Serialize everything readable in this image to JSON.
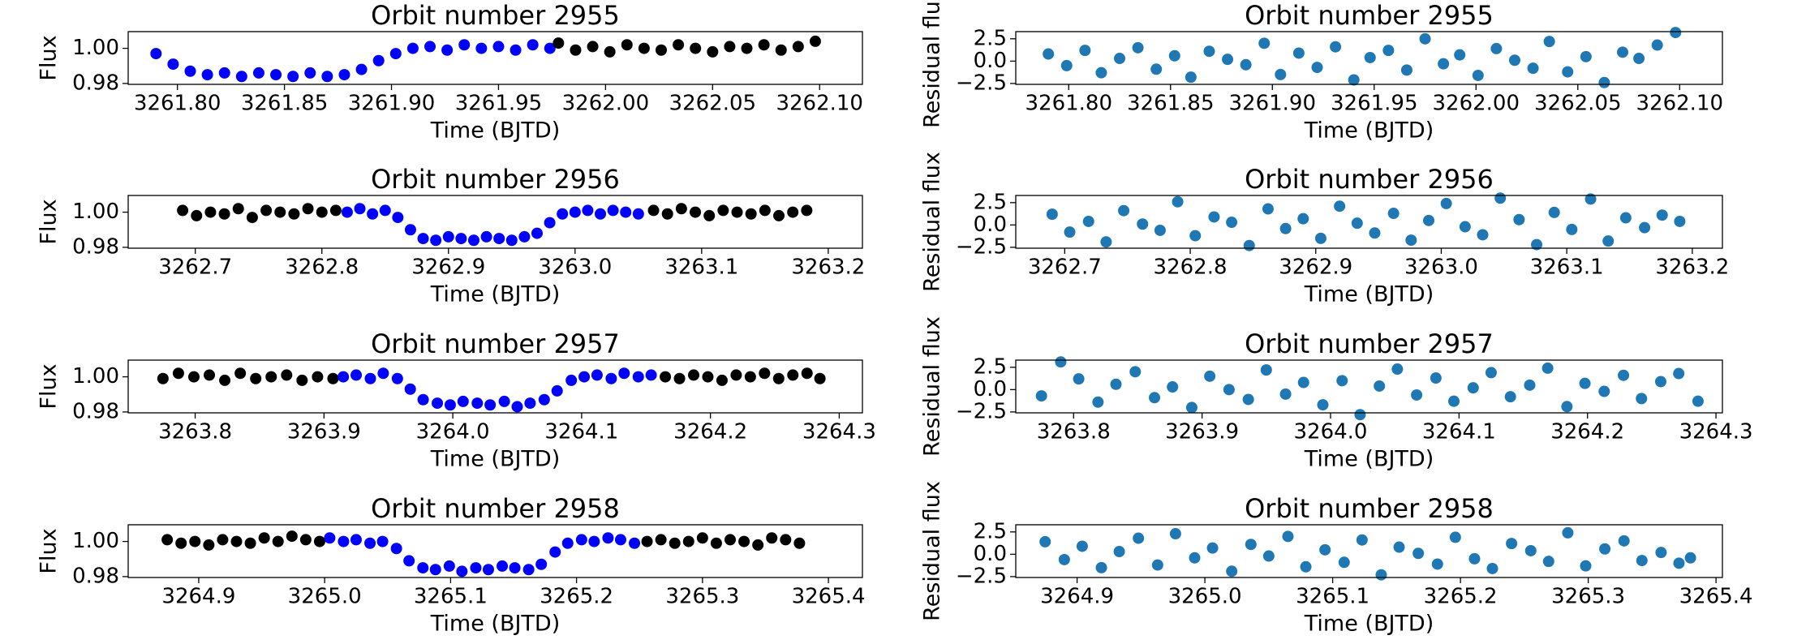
{
  "chart_data": [
    {
      "type": "scatter",
      "title": "Orbit number 2955",
      "xlabel": "Time (BJTD)",
      "ylabel": "Flux",
      "xlim": [
        3261.777,
        3262.12
      ],
      "ylim": [
        0.9795,
        1.0095
      ],
      "xticks": [
        {
          "value": 3261.8,
          "label": "3261.80"
        },
        3261.85,
        {
          "value": 3261.9,
          "label": "3261.90"
        },
        3261.95,
        {
          "value": 3262.0,
          "label": "3262.00"
        },
        3262.05,
        {
          "value": 3262.1,
          "label": "3262.10"
        }
      ],
      "yticks": [
        0.98,
        {
          "value": 1,
          "label": "1.00"
        }
      ],
      "series": [
        {
          "color": "#0000ff",
          "x": [
            3261.79,
            3261.798,
            3261.806,
            3261.814,
            3261.822,
            3261.83,
            3261.838,
            3261.846,
            3261.854,
            3261.862,
            3261.87,
            3261.878,
            3261.886,
            3261.894,
            3261.902,
            3261.91,
            3261.918,
            3261.926,
            3261.934,
            3261.942,
            3261.95,
            3261.958,
            3261.966,
            3261.974
          ],
          "values": [
            0.997,
            0.991,
            0.987,
            0.985,
            0.986,
            0.984,
            0.986,
            0.985,
            0.984,
            0.986,
            0.984,
            0.985,
            0.988,
            0.993,
            0.997,
            1.0,
            1.001,
            0.999,
            1.002,
            1.0,
            1.001,
            0.999,
            1.002,
            1.0
          ]
        },
        {
          "color": "#000000",
          "x": [
            3261.978,
            3261.986,
            3261.994,
            3262.002,
            3262.01,
            3262.018,
            3262.026,
            3262.034,
            3262.042,
            3262.05,
            3262.058,
            3262.066,
            3262.074,
            3262.082,
            3262.09,
            3262.098
          ],
          "values": [
            1.003,
            0.999,
            1.001,
            0.998,
            1.002,
            1.0,
            0.999,
            1.002,
            1.0,
            0.998,
            1.001,
            1.0,
            1.002,
            0.999,
            1.001,
            1.004
          ]
        }
      ]
    },
    {
      "type": "scatter",
      "title": "Orbit number 2955",
      "xlabel": "Time (BJTD)",
      "ylabel": "Residual flux",
      "xlim": [
        3261.774,
        3262.121
      ],
      "ylim": [
        -2.6,
        3.3
      ],
      "xticks": [
        {
          "value": 3261.8,
          "label": "3261.80"
        },
        3261.85,
        {
          "value": 3261.9,
          "label": "3261.90"
        },
        3261.95,
        {
          "value": 3262.0,
          "label": "3262.00"
        },
        3262.05,
        {
          "value": 3262.1,
          "label": "3262.10"
        }
      ],
      "yticks": [
        {
          "value": -2.5,
          "label": "−2.5"
        },
        {
          "value": 0,
          "label": "0.0"
        },
        2.5
      ],
      "series": [
        {
          "color": "#1f77b4",
          "x": [
            3261.79,
            3261.799,
            3261.808,
            3261.816,
            3261.825,
            3261.834,
            3261.843,
            3261.852,
            3261.86,
            3261.869,
            3261.878,
            3261.887,
            3261.896,
            3261.904,
            3261.913,
            3261.922,
            3261.931,
            3261.94,
            3261.948,
            3261.957,
            3261.966,
            3261.975,
            3261.984,
            3261.992,
            3262.001,
            3262.01,
            3262.019,
            3262.028,
            3262.036,
            3262.045,
            3262.054,
            3262.063,
            3262.072,
            3262.08,
            3262.089,
            3262.098
          ],
          "values": [
            0.8,
            -0.5,
            1.2,
            -1.3,
            0.3,
            1.5,
            -0.9,
            0.6,
            -1.8,
            1.1,
            0.2,
            -0.4,
            2.0,
            -1.5,
            0.9,
            -0.7,
            1.6,
            -2.1,
            0.4,
            1.2,
            -1.0,
            2.5,
            -0.3,
            0.7,
            -1.6,
            1.4,
            0.1,
            -0.8,
            2.2,
            -1.2,
            0.5,
            -2.4,
            1.0,
            0.3,
            1.8,
            3.2
          ]
        }
      ]
    },
    {
      "type": "scatter",
      "title": "Orbit number 2956",
      "xlabel": "Time (BJTD)",
      "ylabel": "Flux",
      "xlim": [
        3262.647,
        3263.227
      ],
      "ylim": [
        0.9795,
        1.0095
      ],
      "xticks": [
        3262.7,
        3262.8,
        3262.9,
        {
          "value": 3263.0,
          "label": "3263.0"
        },
        3263.1,
        3263.2
      ],
      "yticks": [
        0.98,
        {
          "value": 1,
          "label": "1.00"
        }
      ],
      "series": [
        {
          "color": "#000000",
          "x": [
            3262.69,
            3262.701,
            3262.712,
            3262.723,
            3262.734,
            3262.745,
            3262.756,
            3262.767,
            3262.778,
            3262.789,
            3262.8,
            3262.811
          ],
          "values": [
            1.001,
            0.998,
            1.0,
            0.999,
            1.002,
            0.997,
            1.001,
            1.0,
            0.999,
            1.002,
            1.0,
            1.001
          ]
        },
        {
          "color": "#0000ff",
          "x": [
            3262.82,
            3262.83,
            3262.84,
            3262.85,
            3262.86,
            3262.87,
            3262.88,
            3262.89,
            3262.9,
            3262.91,
            3262.92,
            3262.93,
            3262.94,
            3262.95,
            3262.96,
            3262.97,
            3262.98,
            3262.99,
            3263.0,
            3263.01,
            3263.02,
            3263.03,
            3263.04,
            3263.05
          ],
          "values": [
            1.0,
            1.002,
            0.999,
            1.001,
            0.997,
            0.99,
            0.985,
            0.984,
            0.986,
            0.985,
            0.984,
            0.986,
            0.985,
            0.984,
            0.986,
            0.988,
            0.994,
            0.999,
            1.0,
            1.001,
            0.999,
            1.001,
            1.0,
            0.999
          ]
        },
        {
          "color": "#000000",
          "x": [
            3263.062,
            3263.073,
            3263.084,
            3263.095,
            3263.106,
            3263.117,
            3263.128,
            3263.139,
            3263.15,
            3263.161,
            3263.172,
            3263.183
          ],
          "values": [
            1.001,
            0.999,
            1.002,
            1.0,
            0.998,
            1.001,
            1.0,
            0.999,
            1.001,
            0.998,
            1.0,
            1.001
          ]
        }
      ]
    },
    {
      "type": "scatter",
      "title": "Orbit number 2956",
      "xlabel": "Time (BJTD)",
      "ylabel": "Residual flux",
      "xlim": [
        3262.661,
        3263.224
      ],
      "ylim": [
        -2.6,
        3.3
      ],
      "xticks": [
        3262.7,
        3262.8,
        3262.9,
        {
          "value": 3263.0,
          "label": "3263.0"
        },
        3263.1,
        3263.2
      ],
      "yticks": [
        {
          "value": -2.5,
          "label": "−2.5"
        },
        {
          "value": 0,
          "label": "0.0"
        },
        2.5
      ],
      "series": [
        {
          "color": "#1f77b4",
          "x": [
            3262.69,
            3262.704,
            3262.719,
            3262.733,
            3262.747,
            3262.762,
            3262.776,
            3262.79,
            3262.804,
            3262.819,
            3262.833,
            3262.847,
            3262.862,
            3262.876,
            3262.89,
            3262.904,
            3262.919,
            3262.933,
            3262.947,
            3262.962,
            3262.976,
            3262.99,
            3263.004,
            3263.019,
            3263.033,
            3263.047,
            3263.062,
            3263.076,
            3263.09,
            3263.104,
            3263.119,
            3263.133,
            3263.147,
            3263.162,
            3263.176,
            3263.19
          ],
          "values": [
            1.2,
            -0.8,
            0.4,
            -1.9,
            1.6,
            0.1,
            -0.6,
            2.6,
            -1.2,
            0.9,
            0.3,
            -2.3,
            1.8,
            -0.4,
            0.7,
            -1.5,
            2.1,
            0.2,
            -0.9,
            1.3,
            -1.7,
            0.5,
            2.4,
            -0.2,
            -1.1,
            3.0,
            0.6,
            -2.2,
            1.4,
            -0.5,
            2.9,
            -1.8,
            0.8,
            -0.3,
            1.1,
            0.4
          ]
        }
      ]
    },
    {
      "type": "scatter",
      "title": "Orbit number 2957",
      "xlabel": "Time (BJTD)",
      "ylabel": "Flux",
      "xlim": [
        3263.748,
        3264.318
      ],
      "ylim": [
        0.9795,
        1.0095
      ],
      "xticks": [
        3263.8,
        3263.9,
        {
          "value": 3264.0,
          "label": "3264.0"
        },
        3264.1,
        3264.2,
        3264.3
      ],
      "yticks": [
        0.98,
        {
          "value": 1,
          "label": "1.00"
        }
      ],
      "series": [
        {
          "color": "#000000",
          "x": [
            3263.775,
            3263.787,
            3263.799,
            3263.811,
            3263.823,
            3263.835,
            3263.847,
            3263.859,
            3263.871,
            3263.883,
            3263.895,
            3263.907
          ],
          "values": [
            0.999,
            1.002,
            1.0,
            1.001,
            0.998,
            1.002,
            0.999,
            1.0,
            1.001,
            0.998,
            1.0,
            0.999
          ]
        },
        {
          "color": "#0000ff",
          "x": [
            3263.915,
            3263.925,
            3263.936,
            3263.946,
            3263.957,
            3263.967,
            3263.977,
            3263.988,
            3263.998,
            3264.008,
            3264.019,
            3264.029,
            3264.04,
            3264.05,
            3264.06,
            3264.071,
            3264.081,
            3264.092,
            3264.102,
            3264.112,
            3264.123,
            3264.133,
            3264.144,
            3264.154
          ],
          "values": [
            1.0,
            1.001,
            0.999,
            1.002,
            0.999,
            0.993,
            0.987,
            0.985,
            0.984,
            0.986,
            0.985,
            0.984,
            0.986,
            0.983,
            0.985,
            0.987,
            0.992,
            0.998,
            1.0,
            1.001,
            0.999,
            1.002,
            1.0,
            1.001
          ]
        },
        {
          "color": "#000000",
          "x": [
            3264.165,
            3264.176,
            3264.187,
            3264.198,
            3264.209,
            3264.22,
            3264.231,
            3264.242,
            3264.253,
            3264.264,
            3264.275,
            3264.285
          ],
          "values": [
            1.0,
            0.999,
            1.001,
            1.0,
            0.998,
            1.001,
            1.0,
            1.002,
            0.999,
            1.001,
            1.002,
            0.999
          ]
        }
      ]
    },
    {
      "type": "scatter",
      "title": "Orbit number 2957",
      "xlabel": "Time (BJTD)",
      "ylabel": "Residual flux",
      "xlim": [
        3263.755,
        3264.305
      ],
      "ylim": [
        -2.6,
        3.3
      ],
      "xticks": [
        3263.8,
        3263.9,
        {
          "value": 3264.0,
          "label": "3264.0"
        },
        3264.1,
        3264.2,
        3264.3
      ],
      "yticks": [
        {
          "value": -2.5,
          "label": "−2.5"
        },
        {
          "value": 0,
          "label": "0.0"
        },
        2.5
      ],
      "series": [
        {
          "color": "#1f77b4",
          "x": [
            3263.775,
            3263.79,
            3263.804,
            3263.819,
            3263.833,
            3263.848,
            3263.863,
            3263.877,
            3263.892,
            3263.906,
            3263.921,
            3263.936,
            3263.95,
            3263.965,
            3263.979,
            3263.994,
            3264.009,
            3264.023,
            3264.038,
            3264.052,
            3264.067,
            3264.082,
            3264.096,
            3264.111,
            3264.125,
            3264.14,
            3264.155,
            3264.169,
            3264.184,
            3264.198,
            3264.213,
            3264.228,
            3264.242,
            3264.257,
            3264.271,
            3264.286
          ],
          "values": [
            -0.7,
            3.1,
            1.2,
            -1.4,
            0.6,
            2.0,
            -0.9,
            0.3,
            -2.0,
            1.5,
            0.0,
            -1.1,
            2.2,
            -0.5,
            0.8,
            -1.7,
            1.0,
            -2.8,
            0.4,
            2.3,
            -0.6,
            1.3,
            -1.3,
            0.2,
            1.9,
            -0.8,
            0.5,
            2.4,
            -1.9,
            0.7,
            -0.2,
            1.6,
            -1.0,
            0.9,
            1.8,
            -1.3
          ]
        }
      ]
    },
    {
      "type": "scatter",
      "title": "Orbit number 2958",
      "xlabel": "Time (BJTD)",
      "ylabel": "Flux",
      "xlim": [
        3264.844,
        3265.427
      ],
      "ylim": [
        0.9795,
        1.0095
      ],
      "xticks": [
        3264.9,
        {
          "value": 3265.0,
          "label": "3265.0"
        },
        3265.1,
        3265.2,
        3265.3,
        3265.4
      ],
      "yticks": [
        0.98,
        {
          "value": 1,
          "label": "1.00"
        }
      ],
      "series": [
        {
          "color": "#000000",
          "x": [
            3264.875,
            3264.886,
            3264.897,
            3264.908,
            3264.919,
            3264.93,
            3264.941,
            3264.952,
            3264.963,
            3264.974,
            3264.985,
            3264.996
          ],
          "values": [
            1.001,
            0.999,
            1.0,
            0.998,
            1.001,
            1.0,
            0.999,
            1.002,
            1.0,
            1.003,
            1.001,
            1.0
          ]
        },
        {
          "color": "#0000ff",
          "x": [
            3265.004,
            3265.015,
            3265.025,
            3265.036,
            3265.046,
            3265.057,
            3265.067,
            3265.078,
            3265.088,
            3265.099,
            3265.109,
            3265.12,
            3265.13,
            3265.141,
            3265.151,
            3265.162,
            3265.172,
            3265.183,
            3265.193,
            3265.204,
            3265.214,
            3265.225,
            3265.235,
            3265.246
          ],
          "values": [
            1.002,
            1.0,
            1.001,
            0.999,
            1.0,
            0.996,
            0.989,
            0.985,
            0.984,
            0.986,
            0.983,
            0.985,
            0.984,
            0.986,
            0.985,
            0.984,
            0.987,
            0.994,
            0.999,
            1.001,
            1.0,
            1.002,
            1.001,
            0.999
          ]
        },
        {
          "color": "#000000",
          "x": [
            3265.256,
            3265.267,
            3265.278,
            3265.289,
            3265.3,
            3265.311,
            3265.322,
            3265.333,
            3265.344,
            3265.355,
            3265.366,
            3265.377
          ],
          "values": [
            1.0,
            1.001,
            0.999,
            1.0,
            1.002,
            0.999,
            1.001,
            1.0,
            0.998,
            1.002,
            1.001,
            0.999
          ]
        }
      ]
    },
    {
      "type": "scatter",
      "title": "Orbit number 2958",
      "xlabel": "Time (BJTD)",
      "ylabel": "Residual flux",
      "xlim": [
        3264.852,
        3265.405
      ],
      "ylim": [
        -2.6,
        3.3
      ],
      "xticks": [
        3264.9,
        {
          "value": 3265.0,
          "label": "3265.0"
        },
        3265.1,
        3265.2,
        3265.3,
        3265.4
      ],
      "yticks": [
        {
          "value": -2.5,
          "label": "−2.5"
        },
        {
          "value": 0,
          "label": "0.0"
        },
        2.5
      ],
      "series": [
        {
          "color": "#1f77b4",
          "x": [
            3264.875,
            3264.89,
            3264.904,
            3264.919,
            3264.933,
            3264.948,
            3264.963,
            3264.977,
            3264.992,
            3265.006,
            3265.021,
            3265.036,
            3265.05,
            3265.065,
            3265.079,
            3265.094,
            3265.109,
            3265.123,
            3265.138,
            3265.152,
            3265.167,
            3265.182,
            3265.196,
            3265.211,
            3265.225,
            3265.24,
            3265.255,
            3265.269,
            3265.284,
            3265.298,
            3265.313,
            3265.328,
            3265.342,
            3265.357,
            3265.371,
            3265.38
          ],
          "values": [
            1.4,
            -0.6,
            0.9,
            -1.5,
            0.3,
            1.8,
            -1.2,
            2.3,
            -0.4,
            0.7,
            -1.9,
            1.1,
            -0.2,
            2.0,
            -1.4,
            0.5,
            -0.9,
            1.6,
            -2.3,
            0.8,
            0.1,
            -1.1,
            1.9,
            -0.5,
            -1.6,
            1.2,
            0.4,
            -0.8,
            2.4,
            -1.3,
            0.6,
            1.5,
            -0.7,
            0.2,
            -1.0,
            -0.4
          ]
        }
      ]
    }
  ]
}
